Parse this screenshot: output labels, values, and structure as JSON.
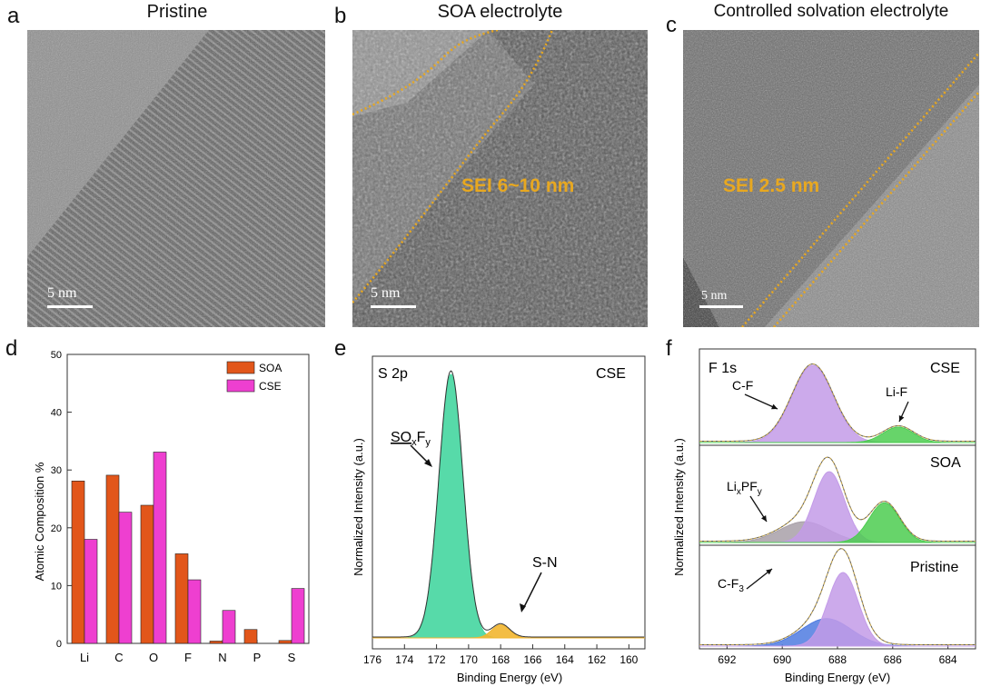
{
  "panels": {
    "a": {
      "letter": "a",
      "title": "Pristine",
      "scale_label": "5 nm"
    },
    "b": {
      "letter": "b",
      "title": "SOA electrolyte",
      "scale_label": "5 nm",
      "sei_label": "SEI 6~10 nm"
    },
    "c": {
      "letter": "c",
      "title": "Controlled solvation electrolyte",
      "scale_label": "5 nm",
      "sei_label": "SEI 2.5 nm"
    },
    "d": {
      "letter": "d"
    },
    "e": {
      "letter": "e"
    },
    "f": {
      "letter": "f"
    }
  },
  "colors": {
    "soa": "#e2561a",
    "cse": "#ee3fd0",
    "sei_dots": "#e8a820"
  },
  "chart_data": [
    {
      "id": "d",
      "type": "bar",
      "title": "",
      "xlabel": "",
      "ylabel": "Atomic Composition %",
      "categories": [
        "Li",
        "C",
        "O",
        "F",
        "N",
        "P",
        "S"
      ],
      "series": [
        {
          "name": "SOA",
          "values": [
            28.1,
            29.1,
            23.9,
            15.5,
            0.4,
            2.4,
            0.5
          ]
        },
        {
          "name": "CSE",
          "values": [
            18.0,
            22.7,
            33.1,
            11.0,
            5.7,
            0.0,
            9.5
          ]
        }
      ],
      "ylim": [
        0,
        50
      ],
      "yticks": [
        0,
        10,
        20,
        30,
        40,
        50
      ],
      "legend": "top-right"
    },
    {
      "id": "e",
      "type": "area",
      "title": "",
      "xlabel": "Binding Energy (eV)",
      "ylabel": "Normalized Intensity (a.u.)",
      "xlim": [
        176,
        159
      ],
      "xticks": [
        176,
        174,
        172,
        170,
        168,
        166,
        164,
        162,
        160
      ],
      "corner_left": "S 2p",
      "corner_right": "CSE",
      "peaks": [
        {
          "label": "SOxFy",
          "center": 171.1,
          "height": 1.0,
          "color": "#45d6a0"
        },
        {
          "label": "S-N",
          "center": 168.0,
          "height": 0.05,
          "color": "#f2b630"
        }
      ],
      "annotations": [
        {
          "text": "SOxFy",
          "points_to": 171.8
        },
        {
          "text": "S-N",
          "points_to": 167.3
        }
      ]
    },
    {
      "id": "f",
      "type": "area",
      "title": "",
      "xlabel": "Binding Energy (eV)",
      "ylabel": "Normalized Intensity (a.u.)",
      "xlim": [
        693,
        683
      ],
      "xticks": [
        692,
        690,
        688,
        686,
        684
      ],
      "corner_left": "F 1s",
      "subplots": [
        {
          "name": "CSE",
          "peaks": [
            {
              "label": "C-F",
              "center": 688.9,
              "height": 0.85,
              "color": "#c39be8"
            },
            {
              "label": "Li-F",
              "center": 685.8,
              "height": 0.17,
              "color": "#4ccd50"
            }
          ]
        },
        {
          "name": "SOA",
          "peaks": [
            {
              "label": "LixPFy",
              "center": 689.2,
              "height": 0.22,
              "color": "#a8a0a8"
            },
            {
              "label": "",
              "center": 688.3,
              "height": 0.75,
              "color": "#c39be8"
            },
            {
              "label": "",
              "center": 686.3,
              "height": 0.42,
              "color": "#4ccd50"
            }
          ]
        },
        {
          "name": "Pristine",
          "peaks": [
            {
              "label": "C-F3",
              "center": 688.4,
              "height": 0.28,
              "color": "#4f7be0"
            },
            {
              "label": "",
              "center": 687.8,
              "height": 0.75,
              "color": "#c39be8"
            }
          ]
        }
      ]
    }
  ],
  "panel_e_text": {
    "ylabel": "Normalized Intensity (a.u.)",
    "xlabel": "Binding Energy (eV)",
    "corner_left": "S 2p",
    "corner_right": "CSE",
    "peak1_main": "SO",
    "peak1_sub_x": "x",
    "peak1_f": "F",
    "peak1_sub_y": "y",
    "peak2_label": "S-N"
  },
  "panel_f_text": {
    "ylabel": "Normalized Intensity (a.u.)",
    "xlabel": "Binding Energy (eV)",
    "corner_left": "F 1s",
    "sub1": "CSE",
    "sub2": "SOA",
    "sub3": "Pristine",
    "cf_label": "C-F",
    "lif_label": "Li-F",
    "lixpfy_main": "Li",
    "lixpfy_x": "x",
    "lixpfy_pf": "PF",
    "lixpfy_y": "y",
    "cf3_main": "C-F",
    "cf3_sub": "3"
  }
}
